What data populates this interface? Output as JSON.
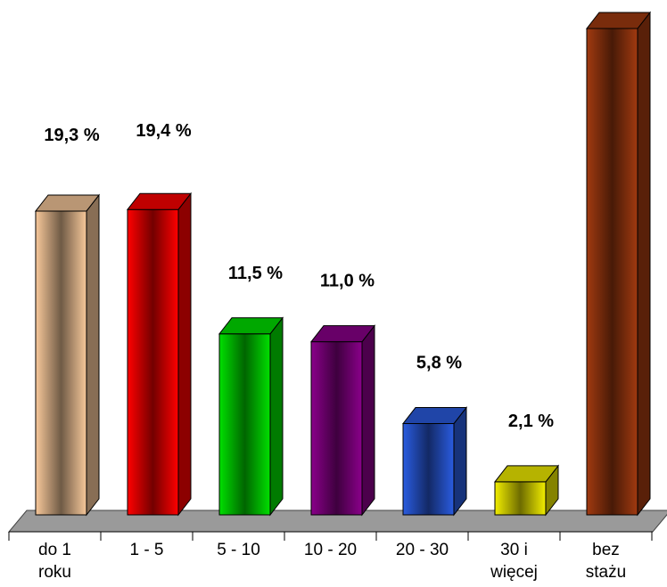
{
  "chart_data": {
    "type": "bar",
    "style": "3d",
    "title": "",
    "xlabel": "",
    "ylabel": "",
    "categories": [
      [
        "do 1",
        "roku"
      ],
      [
        "1 - 5"
      ],
      [
        "5 - 10"
      ],
      [
        "10 - 20"
      ],
      [
        "20 - 30"
      ],
      [
        "30 i",
        "więcej"
      ],
      [
        "bez",
        "stażu"
      ]
    ],
    "values": [
      19.3,
      19.4,
      11.5,
      11.0,
      5.8,
      2.1,
      30.9
    ],
    "value_labels": [
      "19,3 %",
      "19,4 %",
      "11,5 %",
      "11,0 %",
      "5,8 %",
      "2,1 %",
      ""
    ],
    "colors": [
      "#f7c89a",
      "#ff0000",
      "#00e000",
      "#8a008a",
      "#2a5ce0",
      "#f2ee00",
      "#a13a10"
    ],
    "ylim": [
      0,
      32
    ],
    "grid": false,
    "legend": "none"
  }
}
